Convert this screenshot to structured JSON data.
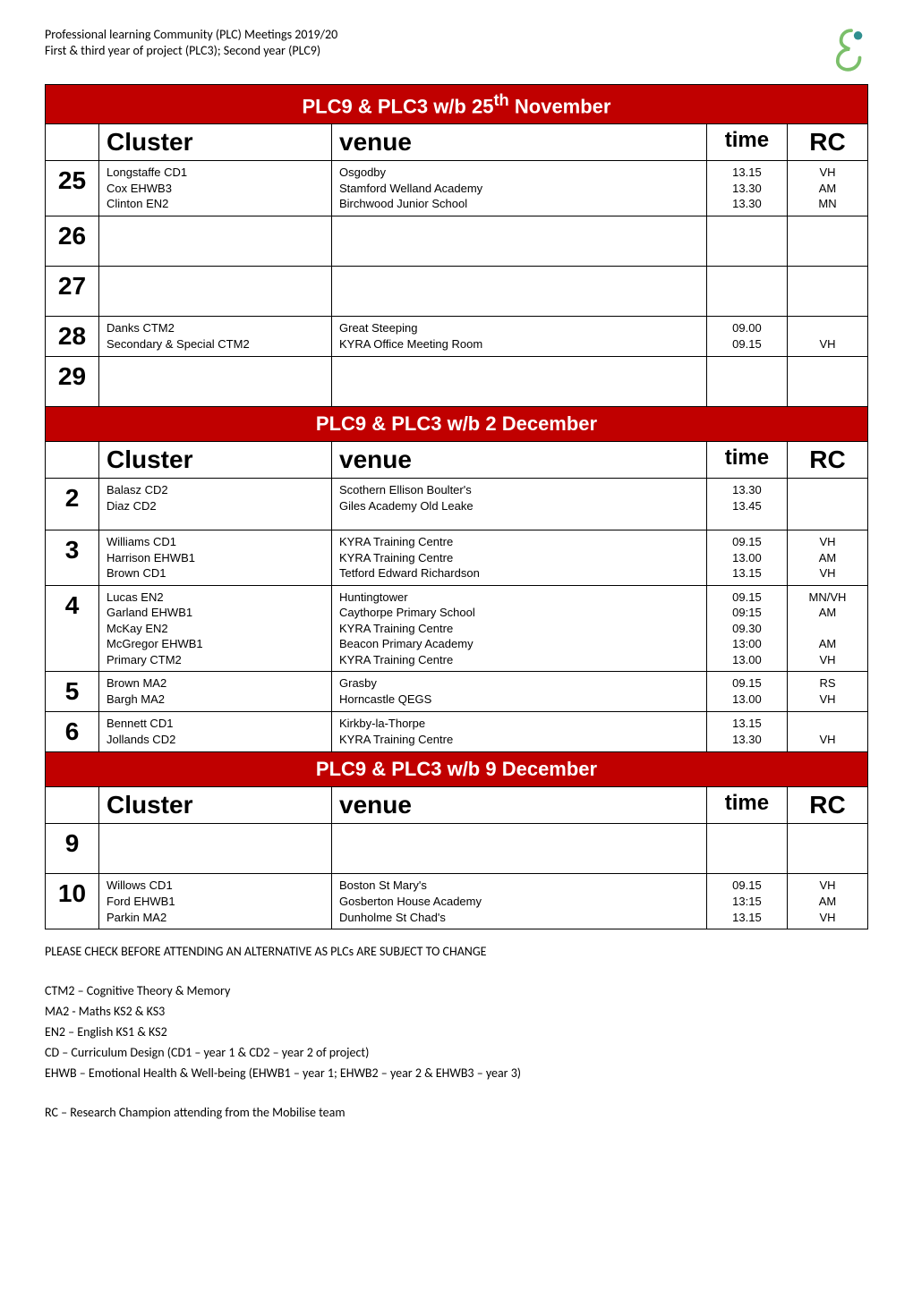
{
  "header": {
    "line1": "Professional learning Community (PLC) Meetings 2019/20",
    "line2": "First & third year of project (PLC3); Second year (PLC9)"
  },
  "logo": {
    "stroke": "#7bbf6a",
    "accent": "#2f8f8f"
  },
  "sections": [
    {
      "band": "PLC9 & PLC3 w/b 25th November",
      "band_has_sup": true,
      "band_pre": "PLC9 & PLC3 w/b 25",
      "band_sup": "th",
      "band_post": " November",
      "headers": {
        "cluster": "Cluster",
        "venue": "venue",
        "time": "time",
        "rc": "RC"
      },
      "rows": [
        {
          "day": "25",
          "cluster": [
            "Longstaffe CD1",
            "Cox EHWB3",
            "Clinton EN2"
          ],
          "venue": [
            "Osgodby",
            "Stamford Welland Academy",
            "Birchwood Junior School"
          ],
          "time": [
            "13.15",
            "13.30",
            "13.30"
          ],
          "rc": [
            "VH",
            "AM",
            "MN"
          ]
        },
        {
          "day": "26",
          "cluster": [],
          "venue": [],
          "time": [],
          "rc": [],
          "empty": true
        },
        {
          "day": "27",
          "cluster": [],
          "venue": [],
          "time": [],
          "rc": [],
          "empty": true
        },
        {
          "day": "28",
          "cluster": [
            "Danks CTM2",
            "Secondary & Special CTM2"
          ],
          "venue": [
            "Great Steeping",
            "KYRA Office Meeting Room"
          ],
          "time": [
            "09.00",
            "09.15"
          ],
          "rc": [
            "",
            "VH"
          ]
        },
        {
          "day": "29",
          "cluster": [],
          "venue": [],
          "time": [],
          "rc": [],
          "empty": true
        }
      ]
    },
    {
      "band": "PLC9 & PLC3 w/b 2 December",
      "band_has_sup": false,
      "headers": {
        "cluster": "Cluster",
        "venue": "venue",
        "time": "time",
        "rc": "RC"
      },
      "rows": [
        {
          "day": "2",
          "cluster": [
            "Balasz CD2",
            "Diaz CD2"
          ],
          "venue": [
            "Scothern Ellison Boulter's",
            "Giles Academy Old Leake"
          ],
          "time": [
            "13.30",
            "13.45"
          ],
          "rc": [],
          "pad_bottom": true
        },
        {
          "day": "3",
          "cluster": [
            "Williams CD1",
            "Harrison EHWB1",
            "Brown CD1"
          ],
          "venue": [
            "KYRA Training Centre",
            "KYRA Training Centre",
            "Tetford Edward Richardson"
          ],
          "time": [
            "09.15",
            "13.00",
            "13.15"
          ],
          "rc": [
            "VH",
            "AM",
            "VH"
          ]
        },
        {
          "day": "4",
          "cluster": [
            "Lucas EN2",
            "Garland EHWB1",
            "McKay EN2",
            "McGregor EHWB1",
            "Primary CTM2"
          ],
          "venue": [
            "Huntingtower",
            "Caythorpe Primary School",
            "KYRA Training Centre",
            "Beacon Primary Academy",
            "KYRA Training Centre"
          ],
          "time": [
            "09.15",
            "09:15",
            "09.30",
            "13:00",
            "13.00"
          ],
          "rc": [
            "MN/VH",
            "AM",
            "",
            "AM",
            "VH"
          ]
        },
        {
          "day": "5",
          "cluster": [
            "Brown MA2",
            "Bargh MA2"
          ],
          "venue": [
            "Grasby",
            "Horncastle QEGS"
          ],
          "time": [
            "09.15",
            "13.00"
          ],
          "rc": [
            "RS",
            "VH"
          ]
        },
        {
          "day": "6",
          "cluster": [
            "Bennett CD1",
            "Jollands CD2"
          ],
          "venue": [
            "Kirkby-la-Thorpe",
            "KYRA Training Centre"
          ],
          "time": [
            "13.15",
            "13.30"
          ],
          "rc": [
            "",
            "VH"
          ]
        }
      ]
    },
    {
      "band": "PLC9 & PLC3 w/b 9 December",
      "band_has_sup": false,
      "headers": {
        "cluster": "Cluster",
        "venue": "venue",
        "time": "time",
        "rc": "RC"
      },
      "rows": [
        {
          "day": "9",
          "cluster": [],
          "venue": [],
          "time": [],
          "rc": [],
          "empty": true
        },
        {
          "day": "10",
          "cluster": [
            "Willows CD1",
            "Ford EHWB1",
            "Parkin MA2"
          ],
          "venue": [
            "Boston St Mary's",
            "Gosberton House Academy",
            "Dunholme St Chad's"
          ],
          "time": [
            "09.15",
            "13:15",
            "13.15"
          ],
          "rc": [
            "VH",
            "AM",
            "VH"
          ]
        }
      ]
    }
  ],
  "footer": {
    "note": "PLEASE CHECK BEFORE ATTENDING AN ALTERNATIVE AS PLCs ARE SUBJECT TO CHANGE",
    "legend": [
      "CTM2 – Cognitive Theory & Memory",
      "MA2 - Maths KS2 & KS3",
      "EN2 – English KS1 & KS2",
      "CD – Curriculum Design (CD1 – year 1 & CD2 – year 2 of project)",
      "EHWB – Emotional Health & Well-being (EHWB1 – year 1; EHWB2 – year 2 & EHWB3 – year 3)"
    ],
    "rc_note": "RC – Research Champion attending from the Mobilise team"
  }
}
